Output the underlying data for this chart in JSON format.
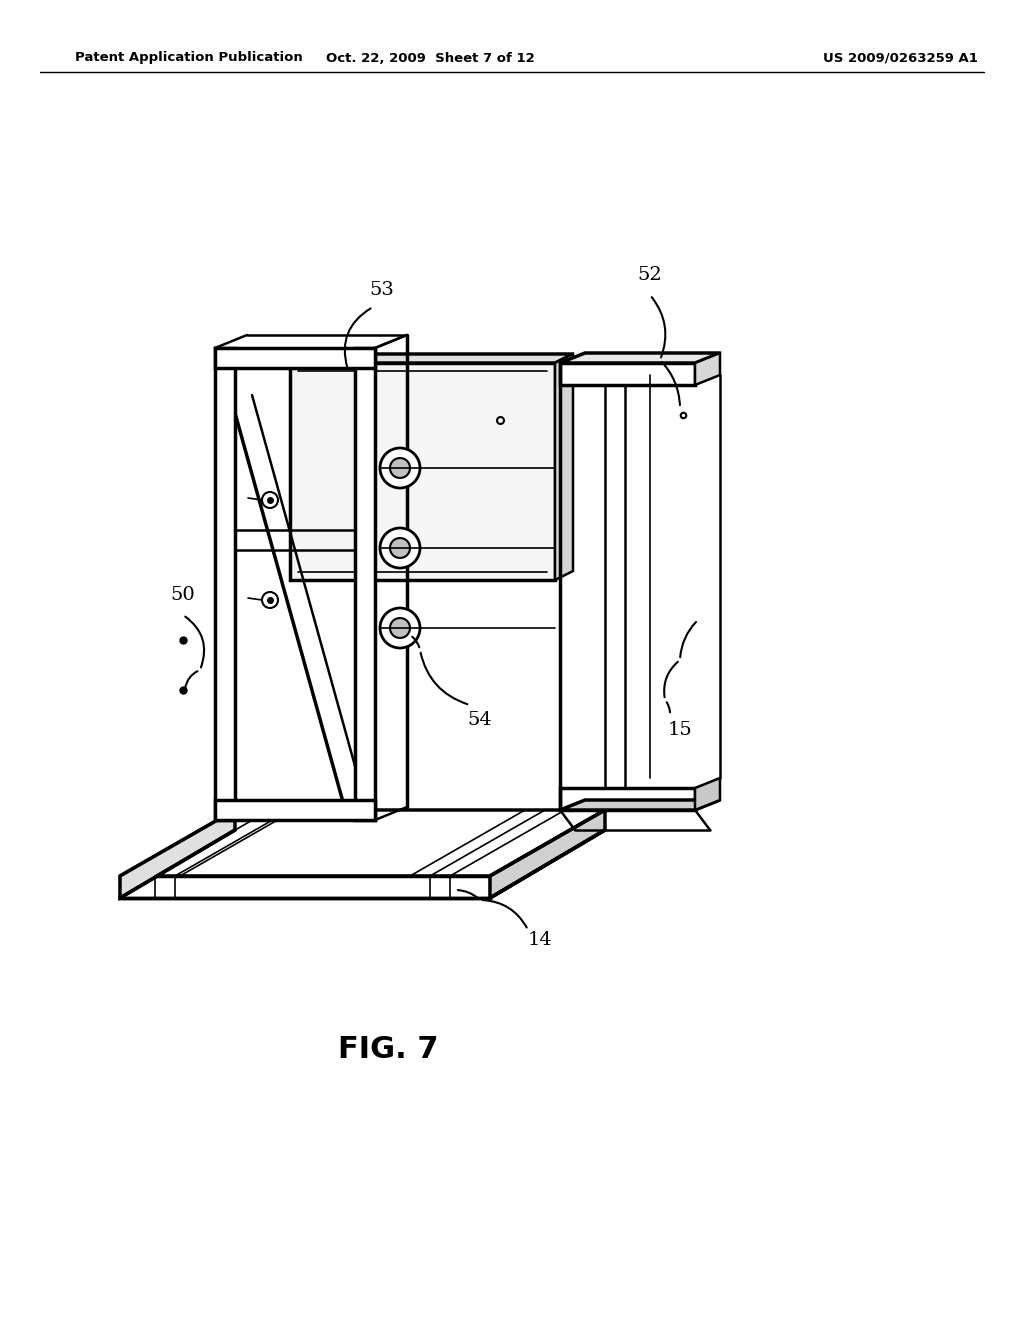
{
  "background_color": "#ffffff",
  "header_left": "Patent Application Publication",
  "header_center": "Oct. 22, 2009  Sheet 7 of 12",
  "header_right": "US 2009/0263259 A1",
  "figure_label": "FIG. 7",
  "line_color": "#000000",
  "lw_thick": 2.5,
  "lw_med": 1.8,
  "lw_thin": 1.2
}
